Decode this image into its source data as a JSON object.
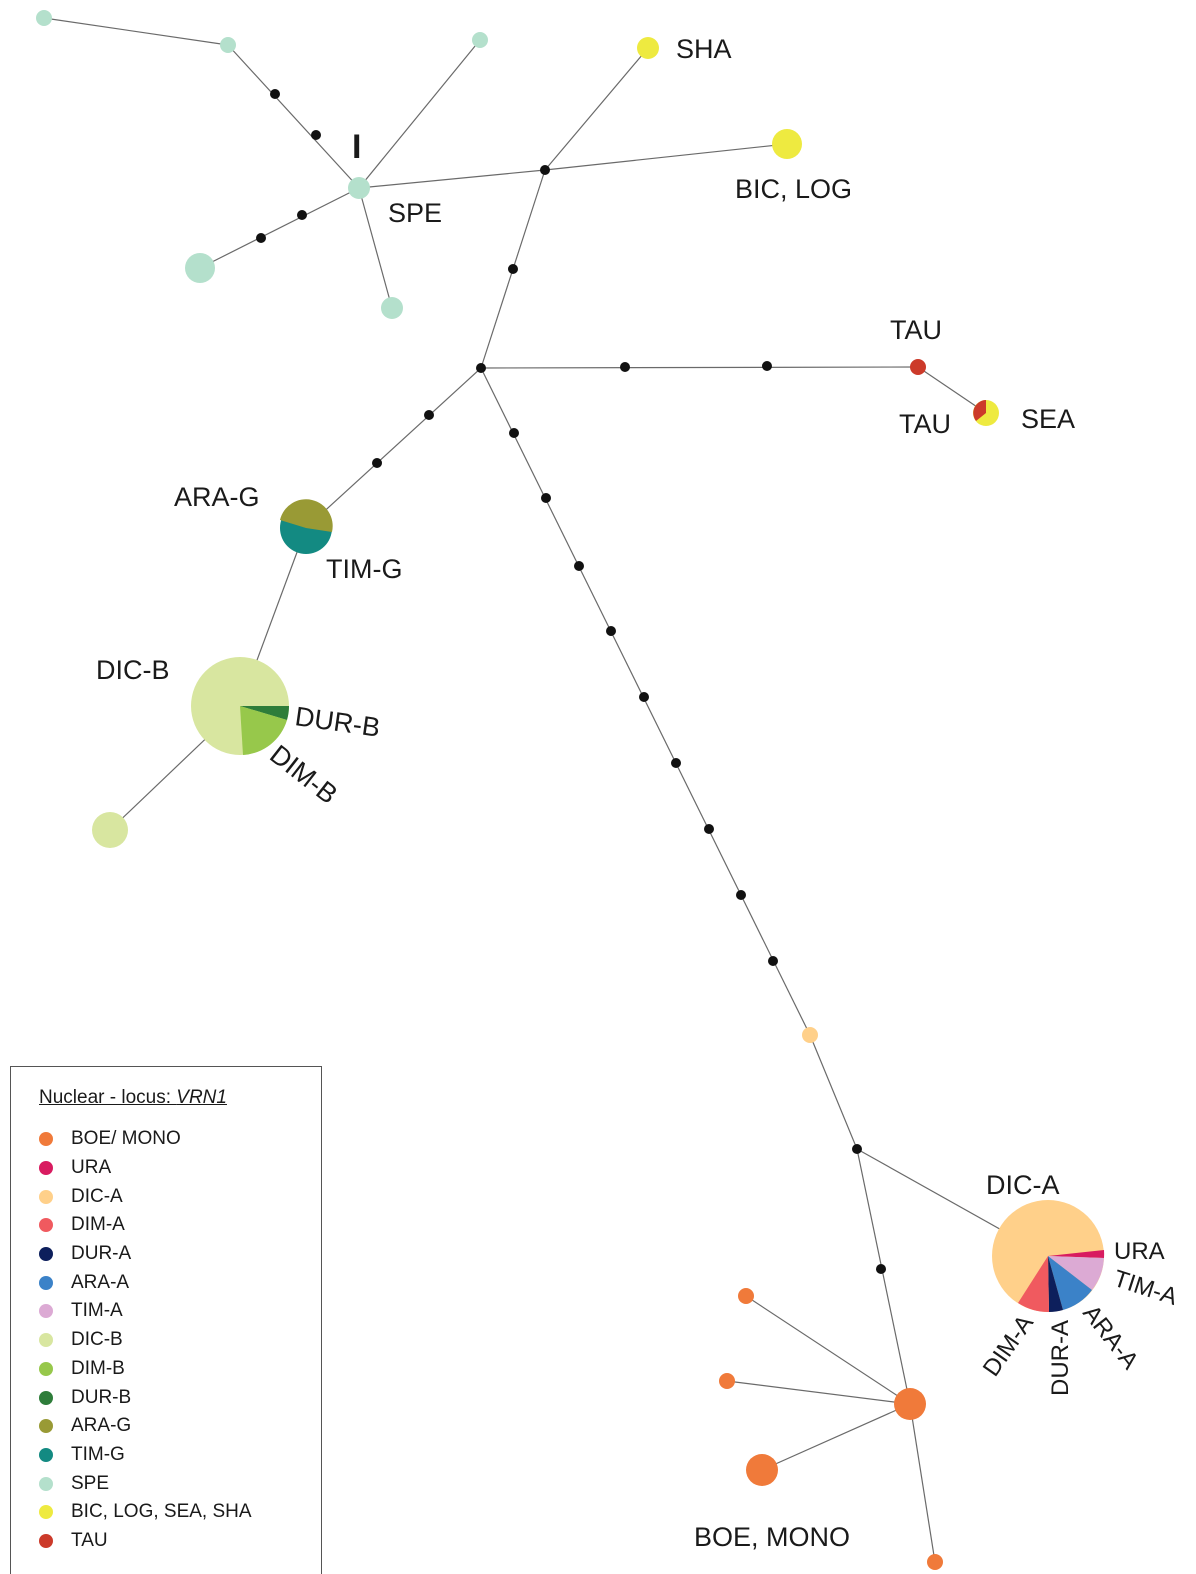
{
  "legend": {
    "title_prefix": "Nuclear - locus: ",
    "title_locus": "VRN1",
    "items": [
      {
        "label": "BOE/ MONO",
        "color": "#f07a3a"
      },
      {
        "label": "URA",
        "color": "#d81b60"
      },
      {
        "label": "DIC-A",
        "color": "#ffd08a"
      },
      {
        "label": "DIM-A",
        "color": "#f05a5f"
      },
      {
        "label": "DUR-A",
        "color": "#0d1f5c"
      },
      {
        "label": "ARA-A",
        "color": "#3b82c8"
      },
      {
        "label": "TIM-A",
        "color": "#dcaad4"
      },
      {
        "label": "DIC-B",
        "color": "#d8e6a0"
      },
      {
        "label": "DIM-B",
        "color": "#97c84b"
      },
      {
        "label": "DUR-B",
        "color": "#2e7d3a"
      },
      {
        "label": "ARA-G",
        "color": "#999a35"
      },
      {
        "label": "TIM-G",
        "color": "#138a82"
      },
      {
        "label": "SPE",
        "color": "#b4e0cc"
      },
      {
        "label": "BIC, LOG, SEA, SHA",
        "color": "#eeea40"
      },
      {
        "label": "TAU",
        "color": "#cc3a2a"
      }
    ]
  },
  "labels": {
    "roman_I": "I",
    "spe": "SPE",
    "sha": "SHA",
    "bic_log": "BIC, LOG",
    "tau_top": "TAU",
    "tau_bottom": "TAU",
    "sea": "SEA",
    "ara_g": "ARA-G",
    "tim_g": "TIM-G",
    "dic_b": "DIC-B",
    "dur_b": "DUR-B",
    "dim_b": "DIM-B",
    "dic_a": "DIC-A",
    "ura": "URA",
    "tim_a": "TIM-A",
    "ara_a": "ARA-A",
    "dur_a": "DUR-A",
    "dim_a": "DIM-A",
    "boe_mono": "BOE, MONO"
  }
}
